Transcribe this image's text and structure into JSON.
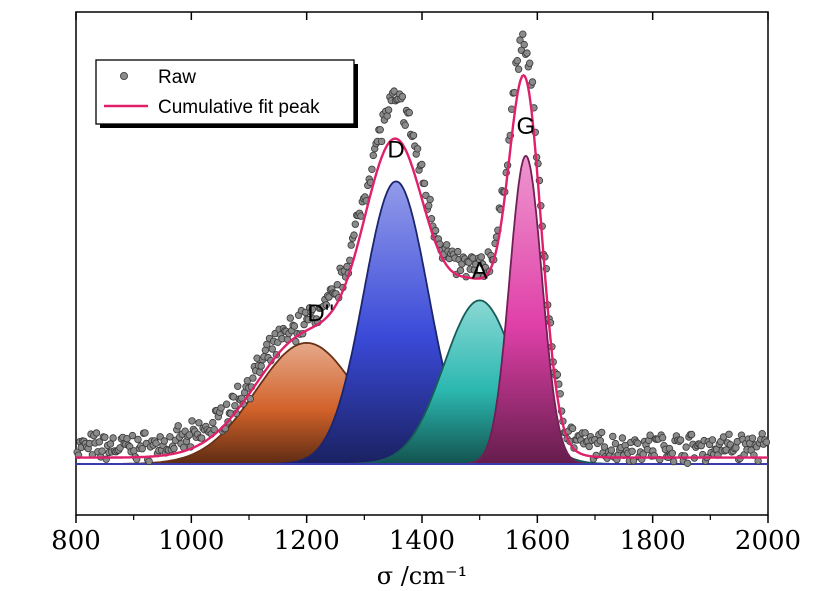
{
  "chart_data": {
    "type": "area",
    "xlabel": "σ /cm⁻¹",
    "xlim": [
      800,
      2000
    ],
    "ylim": [
      0,
      1.1
    ],
    "xticks": [
      800,
      1000,
      1200,
      1400,
      1600,
      1800,
      2000
    ],
    "xtick_labels": [
      "800",
      "1000",
      "1200",
      "1400",
      "1600",
      "1800",
      "2000"
    ],
    "y_axis_labels": false,
    "legend": {
      "placement": "top-left",
      "entries": [
        "Raw",
        "Cumulative fit peak"
      ]
    },
    "components": [
      {
        "label": "D''",
        "center": 1200,
        "height": 0.285,
        "width": 88,
        "color": "#d2622a"
      },
      {
        "label": "D",
        "center": 1355,
        "height": 0.665,
        "width": 56,
        "color": "#3a4ad8"
      },
      {
        "label": "A",
        "center": 1500,
        "height": 0.385,
        "width": 62,
        "color": "#2bb8b0"
      },
      {
        "label": "G",
        "center": 1580,
        "height": 0.725,
        "width": 28,
        "color": "#e040a8"
      }
    ],
    "series": [
      {
        "name": "Raw",
        "style": "markers",
        "color": "#7a7a7a"
      },
      {
        "name": "Cumulative fit peak",
        "style": "line",
        "color": "#e0206a"
      }
    ],
    "baseline": 0.05
  }
}
